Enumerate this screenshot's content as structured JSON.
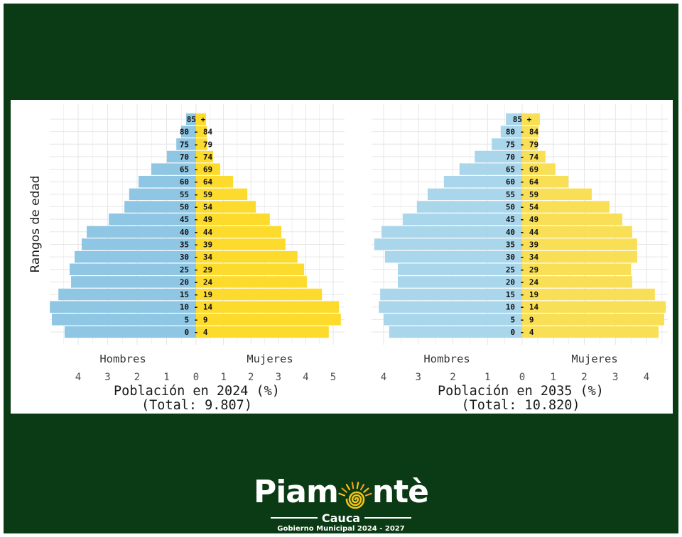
{
  "chart_data": [
    {
      "type": "bar",
      "horizontal": true,
      "categories": [
        "0 - 4",
        "5 - 9",
        "10 - 14",
        "15 - 19",
        "20 - 24",
        "25 - 29",
        "30 - 34",
        "35 - 39",
        "40 - 44",
        "45 - 49",
        "50 - 54",
        "55 - 59",
        "60 - 64",
        "65 - 69",
        "70 - 74",
        "75 - 79",
        "80 - 84",
        "85 +"
      ],
      "series": [
        {
          "name": "Hombres",
          "color": "#8ec6e3",
          "values": [
            4.46,
            4.89,
            4.96,
            4.67,
            4.24,
            4.29,
            4.12,
            3.88,
            3.71,
            2.96,
            2.43,
            2.27,
            1.95,
            1.52,
            0.99,
            0.67,
            0.51,
            0.34
          ]
        },
        {
          "name": "Mujeres",
          "color": "#fddb2d",
          "values": [
            4.84,
            5.28,
            5.21,
            4.59,
            4.04,
            3.94,
            3.7,
            3.26,
            3.11,
            2.69,
            2.18,
            1.87,
            1.35,
            0.88,
            0.62,
            0.41,
            0.39,
            0.36
          ]
        }
      ],
      "xticks": [
        -4,
        -3,
        -2,
        -1,
        0,
        1,
        2,
        3,
        4,
        5
      ],
      "xtick_labels": [
        "4",
        "3",
        "2",
        "1",
        "0",
        "1",
        "2",
        "3",
        "4",
        "5"
      ],
      "xlabel": "Población en 2024 (%)",
      "subtitle": "(Total: 9.807)",
      "ylabel": "Rangos de edad",
      "xlim": [
        -5,
        5.3
      ],
      "grid": true,
      "legend": "none"
    },
    {
      "type": "bar",
      "horizontal": true,
      "categories": [
        "0 - 4",
        "5 - 9",
        "10 - 14",
        "15 - 19",
        "20 - 24",
        "25 - 29",
        "30 - 34",
        "35 - 39",
        "40 - 44",
        "45 - 49",
        "50 - 54",
        "55 - 59",
        "60 - 64",
        "65 - 69",
        "70 - 74",
        "75 - 79",
        "80 - 84",
        "85 +"
      ],
      "series": [
        {
          "name": "Hombres",
          "color": "#aad6ec",
          "values": [
            3.84,
            4.0,
            4.14,
            4.1,
            3.59,
            3.59,
            3.96,
            4.27,
            4.06,
            3.45,
            3.04,
            2.73,
            2.26,
            1.81,
            1.37,
            0.88,
            0.62,
            0.47
          ]
        },
        {
          "name": "Mujeres",
          "color": "#f9df55",
          "values": [
            4.39,
            4.57,
            4.62,
            4.27,
            3.54,
            3.5,
            3.7,
            3.7,
            3.54,
            3.22,
            2.81,
            2.24,
            1.49,
            1.07,
            0.75,
            0.5,
            0.53,
            0.57
          ]
        }
      ],
      "xticks": [
        -4,
        -3,
        -2,
        -1,
        0,
        1,
        2,
        3,
        4
      ],
      "xtick_labels": [
        "4",
        "3",
        "2",
        "1",
        "0",
        "1",
        "2",
        "3",
        "4"
      ],
      "xlabel": "Población en 2035 (%)",
      "subtitle": "(Total: 10.820)",
      "xlim": [
        -4.4,
        4.7
      ],
      "grid": true,
      "legend": "none"
    }
  ],
  "logo": {
    "name": "Piamontè",
    "region": "Cauca",
    "tagline": "Gobierno Municipal 2024 - 2027",
    "text_color": "#ffffff",
    "sun_color": "#f5c518"
  },
  "colors": {
    "background": "#0b3b15",
    "panel": "#ffffff"
  }
}
